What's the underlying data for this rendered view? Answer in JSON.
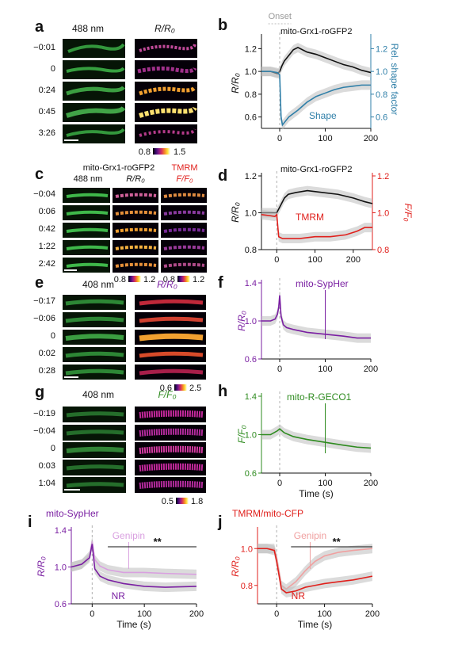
{
  "colors": {
    "black": "#111111",
    "blue": "#2f7fa8",
    "red": "#e0201c",
    "red_light": "#f0a0a0",
    "purple": "#7a1fa2",
    "purple_light": "#d9a0e0",
    "green": "#2e8b1f",
    "gray_band": "#bdbdbd",
    "onset_gray": "#b0b0b0",
    "cb_fire": [
      "#000000",
      "#3a0a6e",
      "#8a1a8a",
      "#d8305a",
      "#f5852a",
      "#fde03a",
      "#ffffff"
    ]
  },
  "panels": {
    "a": {
      "letter": "a",
      "col_titles": [
        "488 nm",
        "R/R₀"
      ],
      "times": [
        "−0:01",
        "0",
        "0:24",
        "0:45",
        "3:26"
      ],
      "colorbar": [
        "0.8",
        "1.5"
      ]
    },
    "c": {
      "letter": "c",
      "header_line1": "mito-Grx1-roGFP2",
      "header_line1_red": "TMRM",
      "col_titles": [
        "488 nm",
        "R/R₀",
        "F/F₀"
      ],
      "times": [
        "−0:04",
        "0:06",
        "0:42",
        "1:22",
        "2:42"
      ],
      "colorbar1": [
        "0.8",
        "1.2"
      ],
      "colorbar2": [
        "0.8",
        "1.2"
      ]
    },
    "e": {
      "letter": "e",
      "col_titles": [
        "408 nm",
        "R/R₀"
      ],
      "times": [
        "−0:17",
        "−0:06",
        "0",
        "0:02",
        "0:28"
      ],
      "colorbar": [
        "0.6",
        "2.5"
      ]
    },
    "g": {
      "letter": "g",
      "col_titles": [
        "408 nm",
        "F/F₀"
      ],
      "times": [
        "−0:19",
        "−0:04",
        "0",
        "0:03",
        "1:04"
      ],
      "colorbar": [
        "0.5",
        "1.8"
      ]
    }
  },
  "chart_data": [
    {
      "panel": "b",
      "type": "line",
      "onset_label": "Onset",
      "series_label": "mito-Grx1-roGFP2",
      "second_label": "Shape",
      "xlabel": "",
      "ylabel": "R/R₀",
      "ylabel_right": "Rel. shape factor",
      "xlim": [
        -40,
        200
      ],
      "ylim": [
        0.5,
        1.3
      ],
      "ylim_right": [
        0.5,
        1.3
      ],
      "xticks": [
        "0",
        "100",
        "200"
      ],
      "yticks": [
        "0.6",
        "0.8",
        "1.0",
        "1.2"
      ],
      "yticks_right": [
        "0.6",
        "0.8",
        "1.0",
        "1.2"
      ],
      "series": [
        {
          "name": "mito-Grx1-roGFP2",
          "color": "black",
          "x": [
            -40,
            -20,
            -5,
            0,
            5,
            10,
            20,
            30,
            40,
            60,
            80,
            100,
            120,
            140,
            160,
            180,
            200
          ],
          "y": [
            1.0,
            1.0,
            0.98,
            1.0,
            1.05,
            1.09,
            1.14,
            1.19,
            1.21,
            1.17,
            1.15,
            1.12,
            1.09,
            1.06,
            1.04,
            1.01,
            0.99
          ]
        },
        {
          "name": "Shape",
          "color": "blue",
          "x": [
            -40,
            -20,
            -5,
            0,
            3,
            6,
            10,
            20,
            40,
            60,
            80,
            100,
            120,
            140,
            160,
            180,
            200
          ],
          "y": [
            1.0,
            1.0,
            0.99,
            0.97,
            0.6,
            0.53,
            0.55,
            0.6,
            0.66,
            0.73,
            0.78,
            0.81,
            0.84,
            0.86,
            0.87,
            0.88,
            0.88
          ]
        }
      ]
    },
    {
      "panel": "d",
      "type": "line",
      "series_label": "mito-Grx1-roGFP2",
      "second_label": "TMRM",
      "xlabel": "",
      "ylabel": "R/R₀",
      "ylabel_right": "F/F₀",
      "xlim": [
        -40,
        250
      ],
      "ylim": [
        0.8,
        1.2
      ],
      "ylim_right": [
        0.8,
        1.2
      ],
      "xticks": [
        "0",
        "100",
        "200"
      ],
      "yticks": [
        "0.8",
        "1.0",
        "1.2"
      ],
      "yticks_right": [
        "0.8",
        "1.0",
        "1.2"
      ],
      "series": [
        {
          "name": "mito-Grx1-roGFP2",
          "color": "black",
          "x": [
            -40,
            -20,
            0,
            10,
            20,
            30,
            50,
            80,
            120,
            160,
            200,
            230,
            250
          ],
          "y": [
            1.0,
            1.0,
            1.0,
            1.04,
            1.08,
            1.1,
            1.11,
            1.12,
            1.11,
            1.1,
            1.08,
            1.06,
            1.05
          ]
        },
        {
          "name": "TMRM",
          "color": "red",
          "x": [
            -40,
            -20,
            -5,
            0,
            5,
            15,
            30,
            60,
            100,
            140,
            180,
            210,
            230,
            250
          ],
          "y": [
            0.99,
            0.985,
            0.98,
            0.99,
            0.87,
            0.86,
            0.86,
            0.86,
            0.87,
            0.87,
            0.88,
            0.9,
            0.92,
            0.92
          ]
        }
      ]
    },
    {
      "panel": "f",
      "type": "line",
      "series_label": "mito-SypHer",
      "xlabel": "",
      "ylabel": "R/R₀",
      "xlim": [
        -40,
        200
      ],
      "ylim": [
        0.6,
        1.4
      ],
      "xticks": [
        "0",
        "100",
        "200"
      ],
      "yticks": [
        "0.6",
        "1.0",
        "1.4"
      ],
      "series": [
        {
          "name": "mito-SypHer",
          "color": "purple",
          "x": [
            -40,
            -20,
            -10,
            -5,
            -2,
            0,
            3,
            8,
            15,
            30,
            60,
            100,
            140,
            170,
            200
          ],
          "y": [
            1.0,
            1.0,
            1.02,
            1.07,
            1.15,
            1.27,
            1.05,
            0.96,
            0.93,
            0.91,
            0.88,
            0.86,
            0.84,
            0.82,
            0.82
          ]
        }
      ]
    },
    {
      "panel": "h",
      "type": "line",
      "series_label": "mito-R-GECO1",
      "xlabel": "Time (s)",
      "ylabel": "F/F₀",
      "xlim": [
        -40,
        200
      ],
      "ylim": [
        0.6,
        1.4
      ],
      "xticks": [
        "0",
        "100",
        "200"
      ],
      "yticks": [
        "0.6",
        "1.0",
        "1.4"
      ],
      "series": [
        {
          "name": "mito-R-GECO1",
          "color": "green",
          "x": [
            -40,
            -20,
            -5,
            0,
            10,
            30,
            60,
            100,
            140,
            170,
            200
          ],
          "y": [
            1.0,
            1.0,
            1.04,
            1.06,
            1.02,
            0.98,
            0.95,
            0.92,
            0.89,
            0.87,
            0.86
          ]
        }
      ]
    },
    {
      "panel": "i",
      "type": "line",
      "title": "mito-SypHer",
      "xlabel": "Time (s)",
      "ylabel": "R/R₀",
      "xlim": [
        -40,
        200
      ],
      "ylim": [
        0.6,
        1.4
      ],
      "xticks": [
        "0",
        "100",
        "200"
      ],
      "yticks": [
        "0.6",
        "1.0",
        "1.4"
      ],
      "significance": "**",
      "series": [
        {
          "name": "Genipin",
          "color": "purple_light",
          "x": [
            -40,
            -20,
            -5,
            0,
            5,
            15,
            30,
            60,
            100,
            140,
            200
          ],
          "y": [
            1.0,
            1.03,
            1.12,
            1.28,
            1.08,
            1.01,
            0.97,
            0.94,
            0.94,
            0.93,
            0.92
          ]
        },
        {
          "name": "NR",
          "color": "purple",
          "x": [
            -40,
            -20,
            -5,
            0,
            5,
            15,
            30,
            60,
            100,
            140,
            200
          ],
          "y": [
            1.0,
            1.03,
            1.1,
            1.25,
            0.98,
            0.9,
            0.86,
            0.82,
            0.79,
            0.78,
            0.79
          ]
        }
      ]
    },
    {
      "panel": "j",
      "type": "line",
      "title": "TMRM/mito-CFP",
      "xlabel": "Time (s)",
      "ylabel": "R/R₀",
      "xlim": [
        -40,
        200
      ],
      "ylim": [
        0.7,
        1.1
      ],
      "xticks": [
        "0",
        "100",
        "200"
      ],
      "yticks": [
        "0.8",
        "1.0"
      ],
      "significance": "**",
      "series": [
        {
          "name": "Genipin",
          "color": "red_light",
          "x": [
            -40,
            -20,
            -5,
            0,
            10,
            20,
            40,
            60,
            80,
            100,
            130,
            160,
            200
          ],
          "y": [
            1.0,
            1.0,
            1.0,
            0.95,
            0.8,
            0.78,
            0.82,
            0.88,
            0.93,
            0.96,
            0.98,
            0.99,
            1.0
          ]
        },
        {
          "name": "NR",
          "color": "red",
          "x": [
            -40,
            -20,
            -5,
            0,
            10,
            20,
            40,
            60,
            80,
            100,
            130,
            160,
            200
          ],
          "y": [
            1.0,
            1.0,
            0.99,
            0.93,
            0.78,
            0.76,
            0.77,
            0.79,
            0.8,
            0.81,
            0.82,
            0.83,
            0.85
          ]
        }
      ]
    }
  ]
}
